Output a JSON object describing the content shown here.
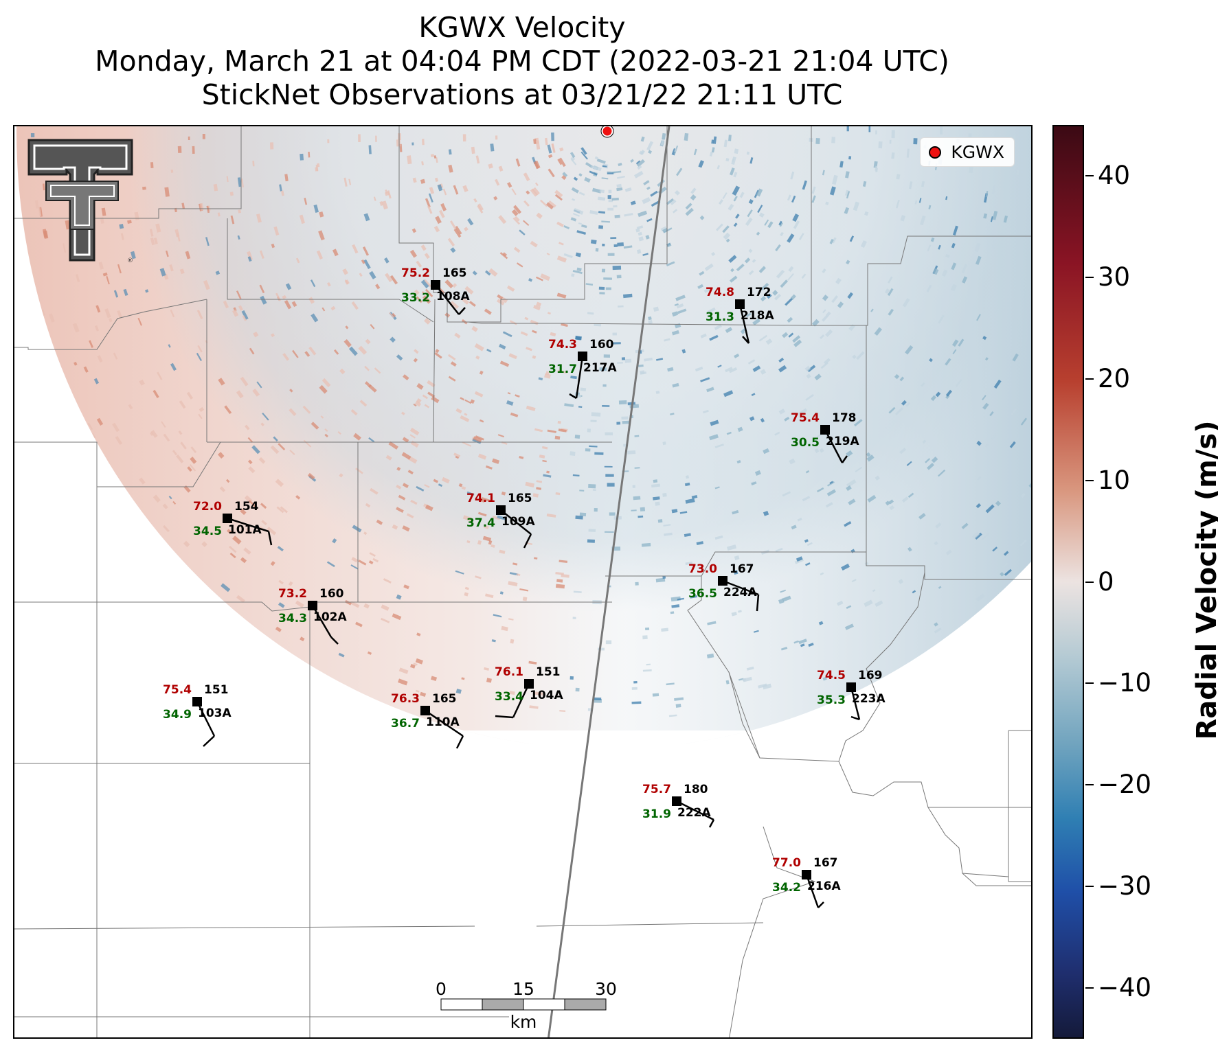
{
  "title": {
    "line1": "KGWX Velocity",
    "line2": "Monday, March 21 at 04:04 PM CDT (2022-03-21 21:04 UTC)",
    "line3": "StickNet Observations at 03/21/22 21:11 UTC"
  },
  "legend": {
    "label": "KGWX",
    "marker_color": "#ee1111"
  },
  "colorbar": {
    "title": "Radial Velocity (m/s)",
    "range": [
      -45,
      45
    ],
    "ticks": [
      "40",
      "30",
      "20",
      "10",
      "0",
      "−10",
      "−20",
      "−30",
      "−40"
    ]
  },
  "scale_bar": {
    "labels": [
      "0",
      "15",
      "30"
    ],
    "unit": "km"
  },
  "logo": {
    "name": "Texas Tech double-T logo"
  },
  "stations": [
    {
      "id": "108A",
      "temp": "75.2",
      "dew": "33.2",
      "dir": "165"
    },
    {
      "id": "218A",
      "temp": "74.8",
      "dew": "31.3",
      "dir": "172"
    },
    {
      "id": "217A",
      "temp": "74.3",
      "dew": "31.7",
      "dir": "160"
    },
    {
      "id": "219A",
      "temp": "75.4",
      "dew": "30.5",
      "dir": "178"
    },
    {
      "id": "101A",
      "temp": "72.0",
      "dew": "34.5",
      "dir": "154"
    },
    {
      "id": "109A",
      "temp": "74.1",
      "dew": "37.4",
      "dir": "165"
    },
    {
      "id": "224A",
      "temp": "73.0",
      "dew": "36.5",
      "dir": "167"
    },
    {
      "id": "102A",
      "temp": "73.2",
      "dew": "34.3",
      "dir": "160"
    },
    {
      "id": "104A",
      "temp": "76.1",
      "dew": "33.4",
      "dir": "151"
    },
    {
      "id": "223A",
      "temp": "74.5",
      "dew": "35.3",
      "dir": "169"
    },
    {
      "id": "103A",
      "temp": "75.4",
      "dew": "34.9",
      "dir": "151"
    },
    {
      "id": "110A",
      "temp": "76.3",
      "dew": "36.7",
      "dir": "165"
    },
    {
      "id": "222A",
      "temp": "75.7",
      "dew": "31.9",
      "dir": "180"
    },
    {
      "id": "216A",
      "temp": "77.0",
      "dew": "34.2",
      "dir": "167"
    }
  ]
}
